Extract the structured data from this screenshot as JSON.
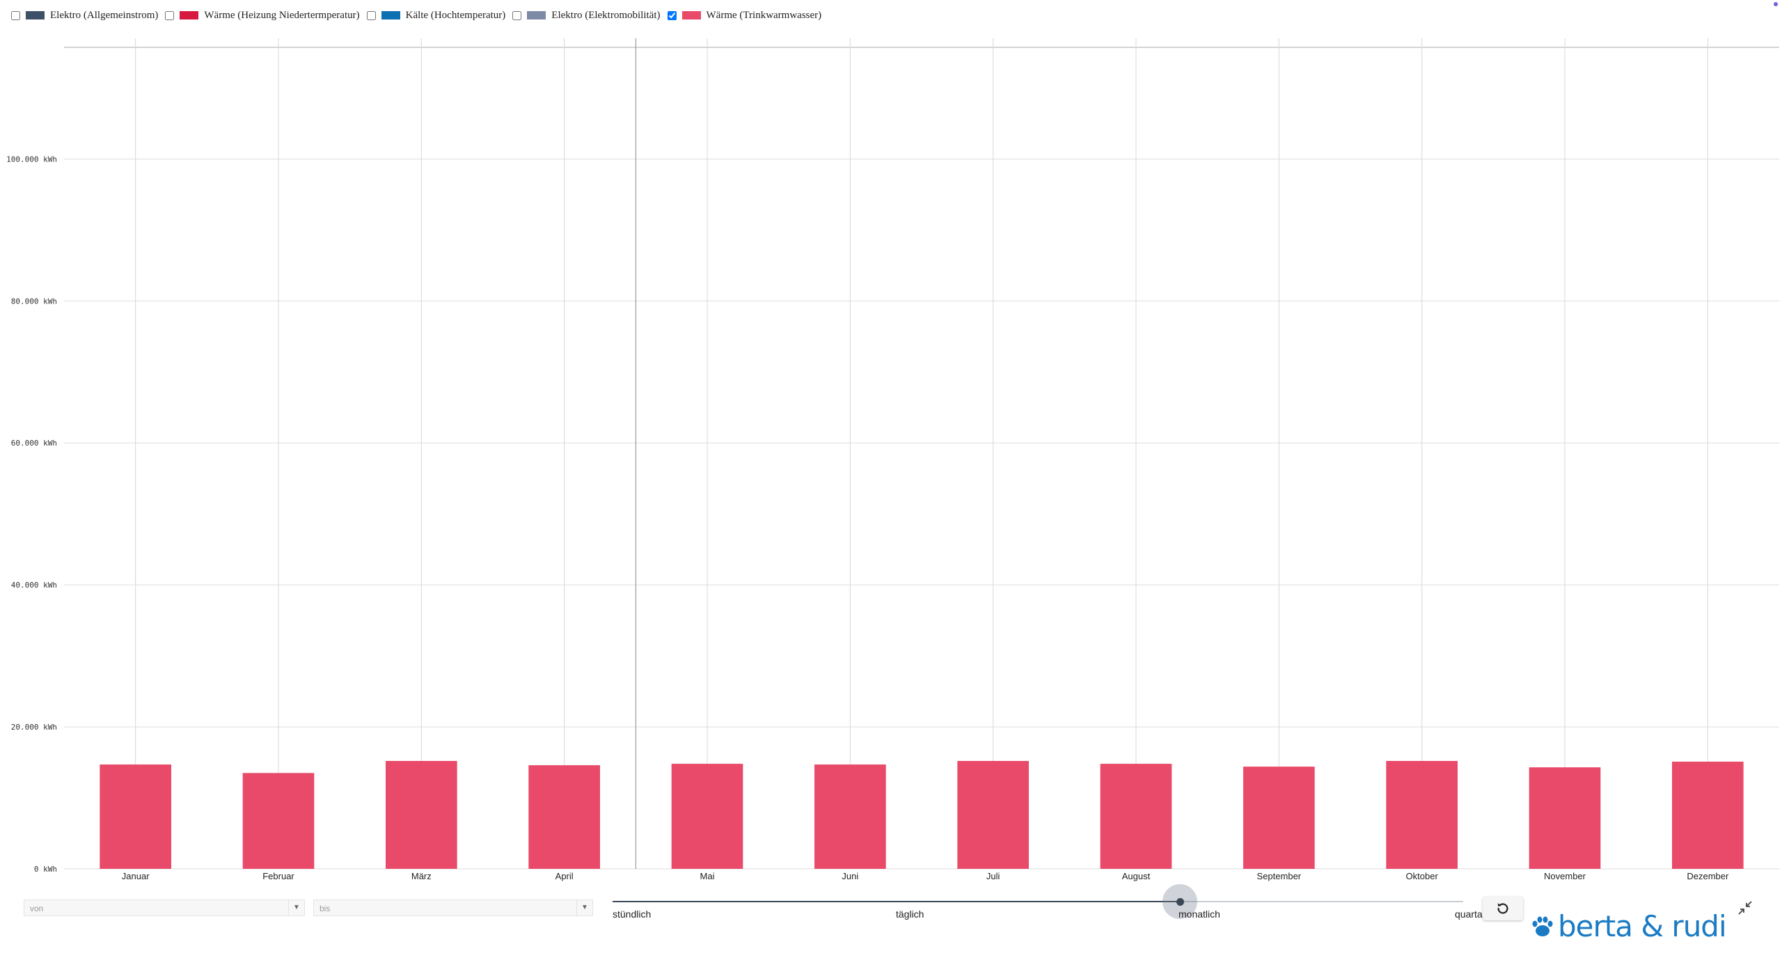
{
  "legend": [
    {
      "label": "Elektro (Allgemeinstrom)",
      "color": "#3e5068",
      "checked": false
    },
    {
      "label": "Wärme (Heizung Niedertermperatur)",
      "color": "#d7193f",
      "checked": false
    },
    {
      "label": "Kälte (Hochtemperatur)",
      "color": "#0f6fb3",
      "checked": false
    },
    {
      "label": "Elektro (Elektromobilität)",
      "color": "#7d8aa6",
      "checked": false
    },
    {
      "label": "Wärme (Trinkwarmwasser)",
      "color": "#e94a69",
      "checked": true
    }
  ],
  "chart_data": {
    "type": "bar",
    "categories": [
      "Januar",
      "Februar",
      "März",
      "April",
      "Mai",
      "Juni",
      "Juli",
      "August",
      "September",
      "Oktober",
      "November",
      "Dezember"
    ],
    "series": [
      {
        "name": "Wärme (Trinkwarmwasser)",
        "color": "#e94a69",
        "values": [
          14700,
          13500,
          15200,
          14600,
          14800,
          14700,
          15200,
          14800,
          14400,
          15200,
          14300,
          15100
        ]
      }
    ],
    "ylim": [
      0,
      117000
    ],
    "yticks": [
      0,
      20000,
      40000,
      60000,
      80000,
      100000
    ],
    "ytick_labels": [
      "0 kWh",
      "20.000 kWh",
      "40.000 kWh",
      "60.000 kWh",
      "80.000 kWh",
      "100.000 kWh"
    ],
    "grid": true,
    "legend_position": "top-left"
  },
  "controls": {
    "from_placeholder": "von",
    "to_placeholder": "bis",
    "dropdown_arrow": "▼",
    "resolution": {
      "options": [
        "stündlich",
        "täglich",
        "monatlich",
        "quartalsweise"
      ],
      "selected": "monatlich",
      "selected_fraction": 0.667
    },
    "reset_icon": "rotate-ccw-icon",
    "collapse_icon": "compress-icon"
  },
  "logo": {
    "text": "berta & rudi",
    "color": "#1a7bc4"
  }
}
